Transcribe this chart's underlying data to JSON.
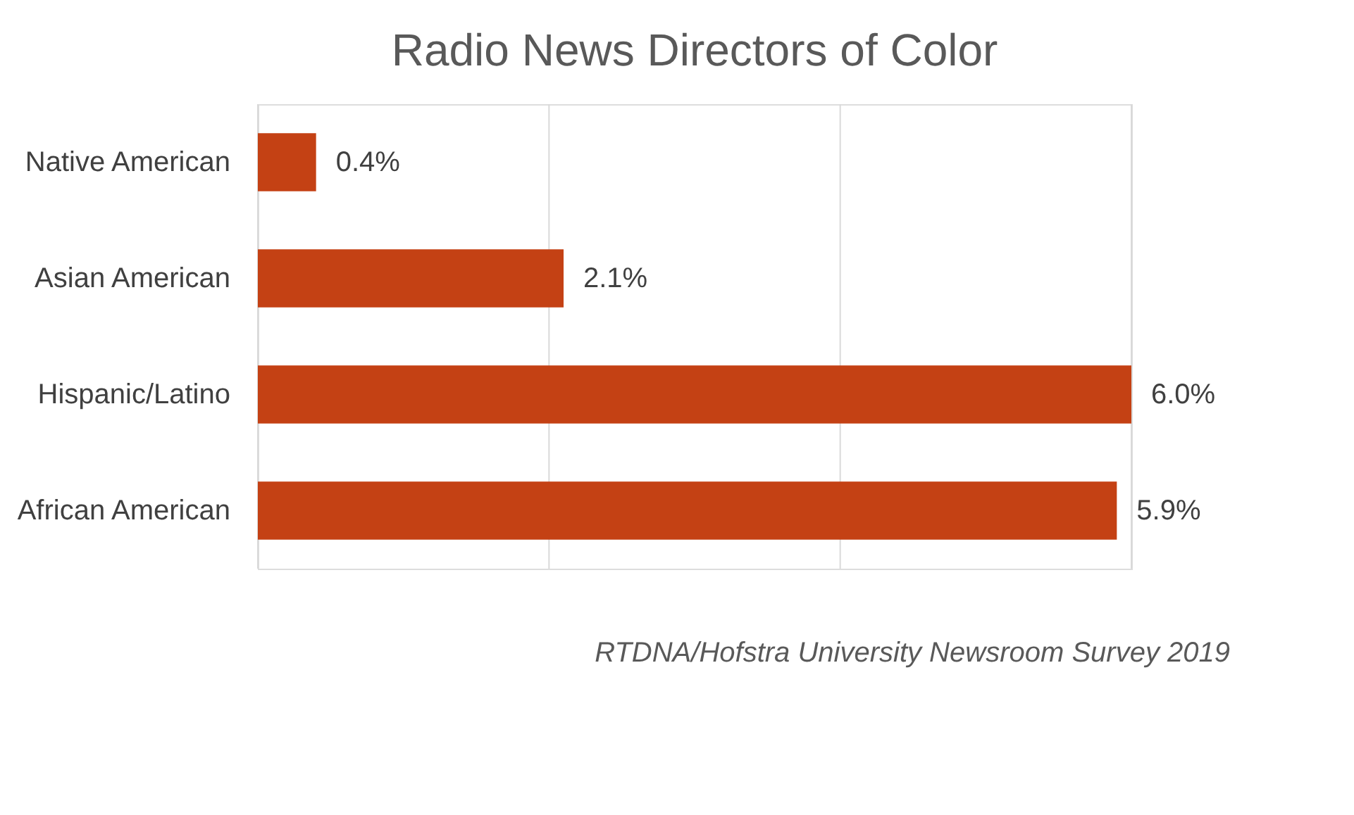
{
  "chart_data": {
    "type": "bar",
    "orientation": "horizontal",
    "title": "Radio News Directors of Color",
    "categories": [
      "Native American",
      "Asian American",
      "Hispanic/Latino",
      "African American"
    ],
    "color": "#c44114",
    "values": [
      0.4,
      2.1,
      6.0,
      5.9
    ],
    "value_labels": [
      "0.4%",
      "2.1%",
      "6.0%",
      "5.9%"
    ],
    "xlim": [
      0,
      6
    ],
    "xticks": [
      {
        "value": 0,
        "label": null
      },
      {
        "value": 2,
        "label": null
      },
      {
        "value": 4,
        "label": null
      },
      {
        "value": 6,
        "label": null
      }
    ],
    "grid": "x",
    "tick_labels": "y",
    "legend": false,
    "annotations": [
      "RTDNA/Hofstra University Newsroom Survey 2019"
    ]
  }
}
